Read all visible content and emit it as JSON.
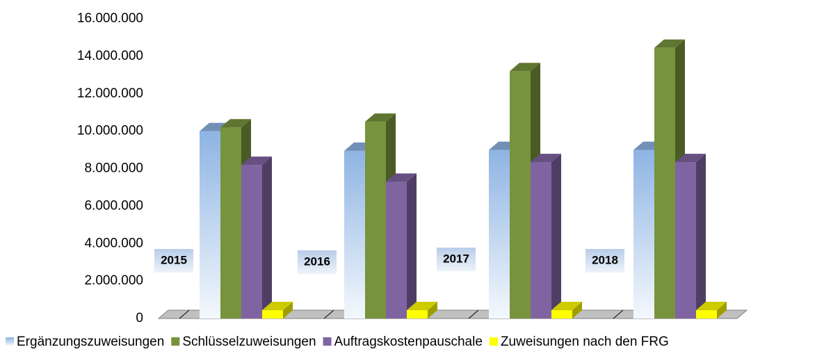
{
  "chart_data": {
    "type": "bar3d",
    "categories": [
      "2015",
      "2016",
      "2017",
      "2018"
    ],
    "series": [
      {
        "name": "Ergänzungszuweisungen",
        "color": "#8eb4e3",
        "values": [
          10000000,
          8950000,
          9000000,
          9000000
        ]
      },
      {
        "name": "Schlüsselzuweisungen",
        "color": "#77933c",
        "values": [
          10200000,
          10500000,
          13200000,
          14450000
        ]
      },
      {
        "name": "Auftragskostenpauschale",
        "color": "#8064a2",
        "values": [
          8200000,
          7300000,
          8350000,
          8350000
        ]
      },
      {
        "name": "Zuweisungen nach den FRG",
        "color": "#ffff00",
        "values": [
          450000,
          450000,
          450000,
          450000
        ]
      }
    ],
    "ylim": [
      0,
      16000000
    ],
    "yticks": [
      0,
      {
        "value": 2000000,
        "label": "2.000.000"
      },
      {
        "value": 4000000,
        "label": "4.000.000"
      },
      {
        "value": 6000000,
        "label": "6.000.000"
      },
      {
        "value": 8000000,
        "label": "8.000.000"
      },
      {
        "value": 10000000,
        "label": "10.000.000"
      },
      {
        "value": 12000000,
        "label": "12.000.000"
      },
      {
        "value": 14000000,
        "label": "14.000.000"
      },
      {
        "value": 16000000,
        "label": "16.000.000"
      }
    ],
    "legend": "bottom"
  }
}
